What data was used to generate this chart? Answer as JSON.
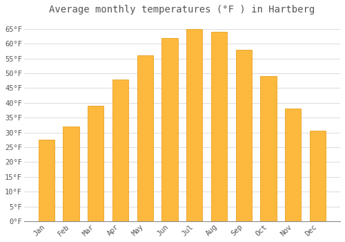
{
  "title": "Average monthly temperatures (°F ) in Hartberg",
  "months": [
    "Jan",
    "Feb",
    "Mar",
    "Apr",
    "May",
    "Jun",
    "Jul",
    "Aug",
    "Sep",
    "Oct",
    "Nov",
    "Dec"
  ],
  "values": [
    27.5,
    32.0,
    39.0,
    48.0,
    56.0,
    62.0,
    65.0,
    64.0,
    58.0,
    49.0,
    38.0,
    30.5
  ],
  "bar_color": "#FDB93E",
  "bar_edge_color": "#E8A020",
  "background_color": "#FFFFFF",
  "grid_color": "#CCCCCC",
  "text_color": "#555555",
  "ylim": [
    0,
    68
  ],
  "yticks": [
    0,
    5,
    10,
    15,
    20,
    25,
    30,
    35,
    40,
    45,
    50,
    55,
    60,
    65
  ],
  "title_fontsize": 10,
  "tick_fontsize": 7.5,
  "font_family": "monospace"
}
